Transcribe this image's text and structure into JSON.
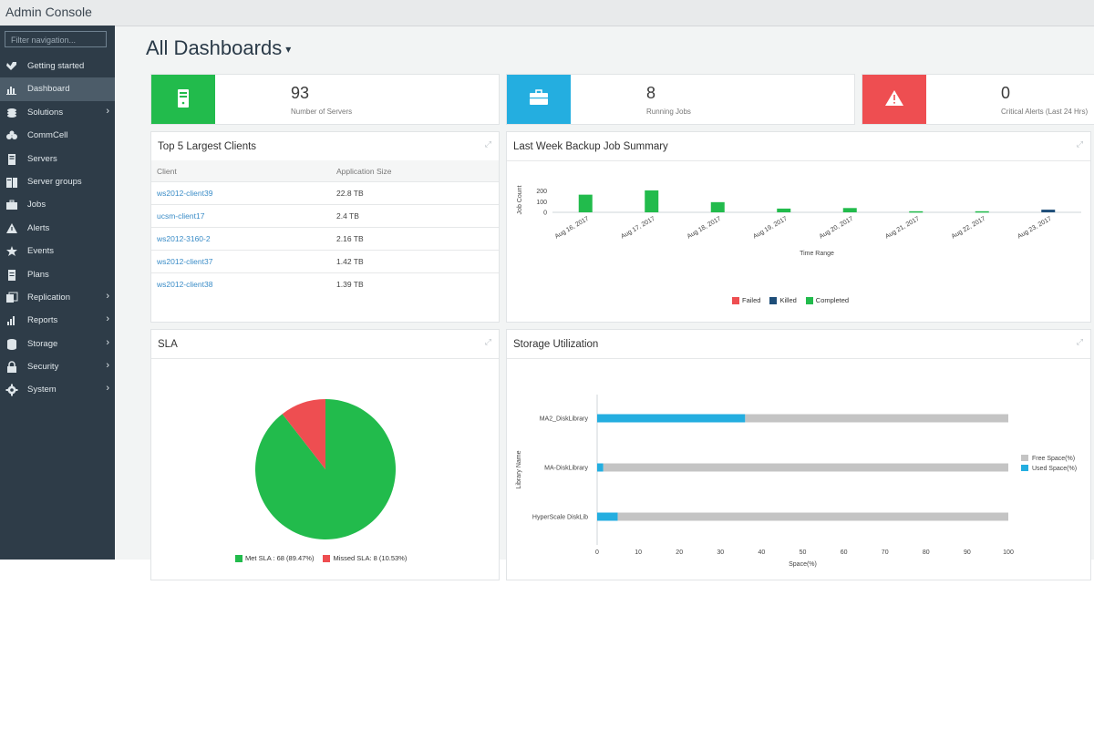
{
  "app": {
    "title": "Admin Console"
  },
  "sidebar": {
    "filter_placeholder": "Filter navigation...",
    "items": [
      {
        "label": "Getting started",
        "icon": "tools-icon",
        "chevron": false,
        "active": false
      },
      {
        "label": "Dashboard",
        "icon": "dashboard-icon",
        "chevron": false,
        "active": true
      },
      {
        "label": "Solutions",
        "icon": "solutions-icon",
        "chevron": true,
        "active": false
      },
      {
        "label": "CommCell",
        "icon": "commcell-icon",
        "chevron": false,
        "active": false
      },
      {
        "label": "Servers",
        "icon": "server-icon",
        "chevron": false,
        "active": false
      },
      {
        "label": "Server groups",
        "icon": "server-groups-icon",
        "chevron": false,
        "active": false
      },
      {
        "label": "Jobs",
        "icon": "briefcase-icon",
        "chevron": false,
        "active": false
      },
      {
        "label": "Alerts",
        "icon": "alert-icon",
        "chevron": false,
        "active": false
      },
      {
        "label": "Events",
        "icon": "events-icon",
        "chevron": false,
        "active": false
      },
      {
        "label": "Plans",
        "icon": "plans-icon",
        "chevron": false,
        "active": false
      },
      {
        "label": "Replication",
        "icon": "replication-icon",
        "chevron": true,
        "active": false
      },
      {
        "label": "Reports",
        "icon": "reports-icon",
        "chevron": true,
        "active": false
      },
      {
        "label": "Storage",
        "icon": "storage-icon",
        "chevron": true,
        "active": false
      },
      {
        "label": "Security",
        "icon": "lock-icon",
        "chevron": true,
        "active": false
      },
      {
        "label": "System",
        "icon": "gear-icon",
        "chevron": true,
        "active": false
      }
    ]
  },
  "header": {
    "title": "All Dashboards",
    "caret": "▾"
  },
  "kpis": [
    {
      "value": "93",
      "label": "Number of Servers",
      "color": "#22bb4c",
      "icon": "server-icon"
    },
    {
      "value": "8",
      "label": "Running Jobs",
      "color": "#24aee0",
      "icon": "briefcase-icon"
    },
    {
      "value": "0",
      "label": "Critical Alerts (Last 24 Hrs)",
      "color": "#ee4e51",
      "icon": "warning-icon"
    }
  ],
  "panels": {
    "clients": {
      "title": "Top 5 Largest Clients",
      "columns": [
        "Client",
        "Application Size"
      ],
      "rows": [
        {
          "client": "ws2012-client39",
          "size": "22.8 TB"
        },
        {
          "client": "ucsm-client17",
          "size": "2.4 TB"
        },
        {
          "client": "ws2012-3160-2",
          "size": "2.16 TB"
        },
        {
          "client": "ws2012-client37",
          "size": "1.42 TB"
        },
        {
          "client": "ws2012-client38",
          "size": "1.39 TB"
        }
      ]
    },
    "backup": {
      "title": "Last Week Backup Job Summary"
    },
    "sla": {
      "title": "SLA"
    },
    "storage": {
      "title": "Storage Utilization"
    }
  },
  "chart_data": [
    {
      "id": "backup",
      "type": "bar",
      "categories": [
        "Aug 16, 2017",
        "Aug 17, 2017",
        "Aug 18, 2017",
        "Aug 19, 2017",
        "Aug 20, 2017",
        "Aug 21, 2017",
        "Aug 22, 2017",
        "Aug 23, 2017"
      ],
      "series": [
        {
          "name": "Failed",
          "color": "#ee4e51",
          "values": [
            0,
            0,
            0,
            0,
            0,
            0,
            0,
            0
          ]
        },
        {
          "name": "Killed",
          "color": "#1e4e79",
          "values": [
            0,
            0,
            0,
            0,
            0,
            0,
            0,
            25
          ]
        },
        {
          "name": "Completed",
          "color": "#22bb4c",
          "values": [
            165,
            205,
            95,
            35,
            40,
            10,
            10,
            0
          ]
        }
      ],
      "xlabel": "Time Range",
      "ylabel": "Job Count",
      "yticks": [
        0,
        100,
        200
      ],
      "ylim": [
        0,
        230
      ],
      "legend": "bottom"
    },
    {
      "id": "sla",
      "type": "pie",
      "slices": [
        {
          "label": "Met SLA : 68 (89.47%)",
          "value": 68,
          "color": "#22bb4c"
        },
        {
          "label": "Missed SLA: 8 (10.53%)",
          "value": 8,
          "color": "#ee4e51"
        }
      ],
      "legend": "bottom"
    },
    {
      "id": "storage",
      "type": "bar",
      "orientation": "horizontal",
      "stacked": true,
      "categories": [
        "MA2_DiskLibrary",
        "MA-DiskLibrary",
        "HyperScale DiskLib"
      ],
      "series": [
        {
          "name": "Used Space(%)",
          "color": "#24aee0",
          "values": [
            36,
            1.5,
            5
          ]
        },
        {
          "name": "Free Space(%)",
          "color": "#c4c4c4",
          "values": [
            64,
            98.5,
            95
          ]
        }
      ],
      "xlabel": "Space(%)",
      "ylabel": "Library Name",
      "xticks": [
        0,
        10,
        20,
        30,
        40,
        50,
        60,
        70,
        80,
        90,
        100
      ],
      "xlim": [
        0,
        100
      ],
      "legend": "right"
    }
  ]
}
